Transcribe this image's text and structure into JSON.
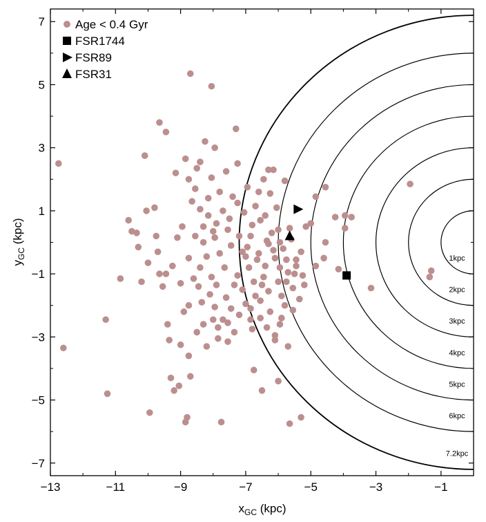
{
  "chart_data": {
    "type": "scatter",
    "xlabel": {
      "main": "x",
      "sub": "GC",
      "unit": " (kpc)"
    },
    "ylabel": {
      "main": "y",
      "sub": "GC",
      "unit": " (kpc)"
    },
    "xlim": [
      -13,
      0
    ],
    "ylim": [
      -7.4,
      7.4
    ],
    "xticks": [
      -13,
      -11,
      -9,
      -7,
      -5,
      -3,
      -1
    ],
    "yticks": [
      -7,
      -5,
      -3,
      -1,
      1,
      3,
      5,
      7
    ],
    "grid": false,
    "legend_position": "top-left",
    "center": [
      0,
      0
    ],
    "circles": [
      {
        "r": 1,
        "label": "1kpc"
      },
      {
        "r": 2,
        "label": "2kpc"
      },
      {
        "r": 3,
        "label": "3kpc"
      },
      {
        "r": 4,
        "label": "4kpc"
      },
      {
        "r": 5,
        "label": "5kpc"
      },
      {
        "r": 6,
        "label": "6kpc"
      },
      {
        "r": 7.2,
        "label": "7.2kpc"
      }
    ],
    "series": [
      {
        "name": "Age < 0.4 Gyr",
        "marker": "circle",
        "color": "#bc8f8f",
        "points": [
          [
            -12.75,
            2.5
          ],
          [
            -12.6,
            -3.35
          ],
          [
            -11.3,
            -2.45
          ],
          [
            -11.25,
            -4.8
          ],
          [
            -10.85,
            -1.15
          ],
          [
            -10.6,
            0.7
          ],
          [
            -10.5,
            0.35
          ],
          [
            -10.35,
            0.3
          ],
          [
            -10.3,
            -0.15
          ],
          [
            -10.05,
            1.0
          ],
          [
            -10.0,
            -0.65
          ],
          [
            -10.2,
            -1.25
          ],
          [
            -9.95,
            -5.4
          ],
          [
            -9.8,
            1.1
          ],
          [
            -9.75,
            0.2
          ],
          [
            -9.65,
            -1.0
          ],
          [
            -9.55,
            -1.4
          ],
          [
            -9.45,
            -1.0
          ],
          [
            -9.4,
            -2.6
          ],
          [
            -9.35,
            -3.1
          ],
          [
            -9.3,
            -4.3
          ],
          [
            -9.2,
            -4.7
          ],
          [
            -9.05,
            -4.55
          ],
          [
            -9.0,
            -3.25
          ],
          [
            -8.85,
            -5.7
          ],
          [
            -8.8,
            -5.55
          ],
          [
            -8.75,
            -3.6
          ],
          [
            -8.75,
            -2.0
          ],
          [
            -8.7,
            -4.25
          ],
          [
            -9.7,
            -0.3
          ],
          [
            -10.1,
            2.75
          ],
          [
            -9.65,
            3.8
          ],
          [
            -9.45,
            3.5
          ],
          [
            -9.15,
            2.2
          ],
          [
            -8.75,
            2.0
          ],
          [
            -8.7,
            5.35
          ],
          [
            -8.05,
            4.95
          ],
          [
            -8.25,
            3.2
          ],
          [
            -7.95,
            3.0
          ],
          [
            -7.3,
            3.6
          ],
          [
            -7.75,
            -5.7
          ],
          [
            -5.65,
            -5.75
          ],
          [
            -5.3,
            -5.55
          ],
          [
            -6.0,
            -4.4
          ],
          [
            -6.5,
            -4.7
          ],
          [
            -6.75,
            -4.05
          ],
          [
            -6.1,
            -3.1
          ],
          [
            -5.95,
            -2.6
          ],
          [
            -5.8,
            -2.0
          ],
          [
            -4.6,
            -0.5
          ],
          [
            -4.85,
            -0.75
          ],
          [
            -4.55,
            1.75
          ],
          [
            -4.85,
            1.45
          ],
          [
            -4.55,
            0.0
          ],
          [
            -4.25,
            0.8
          ],
          [
            -4.15,
            -0.85
          ],
          [
            -5.0,
            0.6
          ],
          [
            -5.15,
            0.5
          ],
          [
            -3.95,
            0.85
          ],
          [
            -3.75,
            0.8
          ],
          [
            -3.95,
            0.45
          ],
          [
            -3.15,
            -1.45
          ],
          [
            -1.95,
            1.85
          ],
          [
            -1.3,
            -0.9
          ],
          [
            -1.35,
            -1.1
          ],
          [
            -8.65,
            1.3
          ],
          [
            -8.4,
            1.05
          ],
          [
            -8.3,
            0.5
          ],
          [
            -8.55,
            0.2
          ],
          [
            -8.2,
            -0.45
          ],
          [
            -8.4,
            -0.8
          ],
          [
            -8.6,
            -1.15
          ],
          [
            -8.1,
            -1.65
          ],
          [
            -8.35,
            -1.9
          ],
          [
            -7.95,
            -2.05
          ],
          [
            -7.6,
            -1.75
          ],
          [
            -8.0,
            -2.45
          ],
          [
            -7.55,
            -2.55
          ],
          [
            -7.85,
            -3.05
          ],
          [
            -8.3,
            -2.6
          ],
          [
            -7.8,
            -0.35
          ],
          [
            -7.55,
            0.4
          ],
          [
            -7.7,
            1.0
          ],
          [
            -7.4,
            1.45
          ],
          [
            -7.8,
            1.6
          ],
          [
            -8.05,
            2.05
          ],
          [
            -7.6,
            2.25
          ],
          [
            -7.25,
            2.5
          ],
          [
            -8.4,
            2.55
          ],
          [
            -7.95,
            0.15
          ],
          [
            -7.45,
            -0.1
          ],
          [
            -7.2,
            0.2
          ],
          [
            -7.0,
            -0.45
          ],
          [
            -6.8,
            0.55
          ],
          [
            -7.05,
            0.95
          ],
          [
            -6.7,
            1.15
          ],
          [
            -6.4,
            0.85
          ],
          [
            -6.05,
            1.1
          ],
          [
            -6.25,
            1.55
          ],
          [
            -6.6,
            1.6
          ],
          [
            -6.45,
            2.0
          ],
          [
            -6.15,
            2.3
          ],
          [
            -5.8,
            1.95
          ],
          [
            -6.0,
            0.4
          ],
          [
            -6.3,
            -0.05
          ],
          [
            -6.6,
            -0.35
          ],
          [
            -6.9,
            -0.8
          ],
          [
            -7.25,
            -1.05
          ],
          [
            -7.1,
            -1.5
          ],
          [
            -6.75,
            -1.25
          ],
          [
            -6.4,
            -0.75
          ],
          [
            -6.1,
            -0.5
          ],
          [
            -5.85,
            -0.2
          ],
          [
            -5.6,
            0.1
          ],
          [
            -5.45,
            -0.55
          ],
          [
            -5.7,
            -0.95
          ],
          [
            -6.0,
            -1.25
          ],
          [
            -6.3,
            -1.55
          ],
          [
            -6.55,
            -1.85
          ],
          [
            -6.85,
            -2.1
          ],
          [
            -7.2,
            -2.3
          ],
          [
            -6.55,
            -2.4
          ],
          [
            -6.25,
            -2.2
          ],
          [
            -5.9,
            -1.7
          ],
          [
            -5.55,
            -1.45
          ],
          [
            -5.25,
            -1.05
          ],
          [
            -5.35,
            -1.8
          ],
          [
            -5.55,
            -2.15
          ],
          [
            -5.9,
            -2.4
          ],
          [
            -6.35,
            -2.7
          ],
          [
            -6.8,
            -2.75
          ],
          [
            -7.35,
            -2.85
          ],
          [
            -7.7,
            -2.45
          ],
          [
            -8.05,
            -1.1
          ],
          [
            -8.3,
            0.0
          ],
          [
            -8.15,
            0.85
          ],
          [
            -7.9,
            0.6
          ],
          [
            -7.65,
            -0.8
          ],
          [
            -7.35,
            -1.35
          ],
          [
            -7.1,
            -0.3
          ],
          [
            -6.85,
            0.2
          ],
          [
            -6.55,
            0.7
          ],
          [
            -6.2,
            0.3
          ],
          [
            -5.95,
            -0.8
          ],
          [
            -5.75,
            -1.25
          ],
          [
            -5.5,
            -1.0
          ],
          [
            -5.3,
            -0.3
          ],
          [
            -5.65,
            0.45
          ],
          [
            -6.45,
            -1.1
          ],
          [
            -6.7,
            -1.7
          ],
          [
            -7.0,
            -1.95
          ],
          [
            -7.45,
            -2.1
          ],
          [
            -7.9,
            -1.35
          ],
          [
            -8.45,
            -1.4
          ],
          [
            -8.75,
            -0.5
          ],
          [
            -8.95,
            0.5
          ],
          [
            -9.1,
            0.15
          ],
          [
            -9.25,
            -0.75
          ],
          [
            -9.0,
            -1.3
          ],
          [
            -8.9,
            -2.2
          ],
          [
            -8.5,
            -2.85
          ],
          [
            -8.2,
            -3.3
          ],
          [
            -8.55,
            1.7
          ],
          [
            -8.85,
            2.65
          ],
          [
            -8.5,
            2.35
          ],
          [
            -8.15,
            1.4
          ],
          [
            -7.5,
            0.75
          ],
          [
            -7.25,
            1.25
          ],
          [
            -6.95,
            1.75
          ],
          [
            -6.3,
            2.3
          ],
          [
            -6.1,
            -2.95
          ],
          [
            -5.7,
            -3.3
          ],
          [
            -6.85,
            -2.45
          ],
          [
            -7.55,
            -3.15
          ],
          [
            -7.85,
            -2.7
          ],
          [
            -8.0,
            0.35
          ],
          [
            -6.95,
            -0.15
          ],
          [
            -6.65,
            -0.55
          ],
          [
            -6.35,
            0.05
          ],
          [
            -6.15,
            -0.25
          ],
          [
            -5.95,
            0.0
          ],
          [
            -5.75,
            -0.55
          ],
          [
            -5.45,
            -0.75
          ],
          [
            -5.2,
            -1.35
          ],
          [
            -6.5,
            -1.35
          ]
        ]
      },
      {
        "name": "FSR1744",
        "marker": "square",
        "color": "#000000",
        "points": [
          [
            -3.9,
            -1.05
          ]
        ]
      },
      {
        "name": "FSR89",
        "marker": "triangle-right",
        "color": "#000000",
        "points": [
          [
            -5.4,
            1.05
          ]
        ]
      },
      {
        "name": "FSR31",
        "marker": "triangle-up",
        "color": "#000000",
        "points": [
          [
            -5.65,
            0.2
          ]
        ]
      }
    ]
  }
}
